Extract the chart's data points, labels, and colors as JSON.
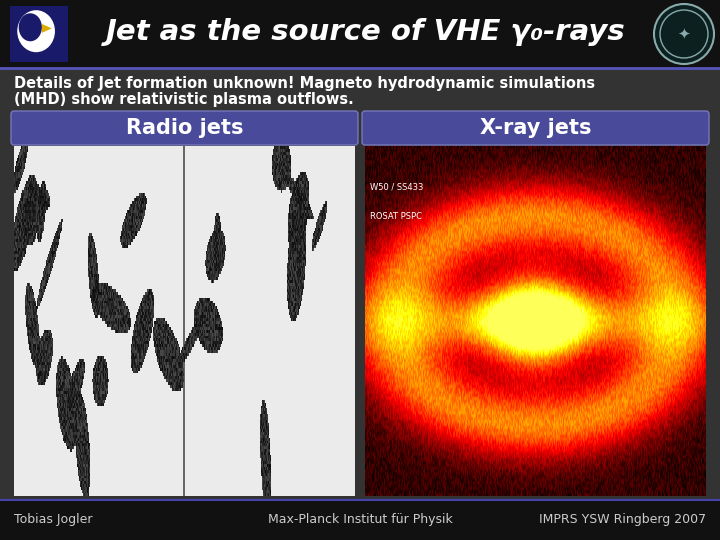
{
  "background_color": "#2a2a2a",
  "header_bg": "#111111",
  "header_text_color": "#ffffff",
  "body_bg": "#333333",
  "description_line1": "Details of Jet formation unknown! Magneto hydrodynamic simulations",
  "description_line2": "(MHD) show relativistic plasma outflows.",
  "description_color": "#ffffff",
  "box_left_label": "Radio jets",
  "box_right_label": "X-ray jets",
  "box_label_color": "#ffffff",
  "box_bg_color": "#4a4a9a",
  "box_border_color": "#7777bb",
  "footer_left": "Tobias Jogler",
  "footer_center": "Max-Planck Institut für Physik",
  "footer_right": "IMPRS YSW Ringberg 2007",
  "footer_color": "#cccccc",
  "footer_bg": "#111111",
  "footer_line_color": "#4444aa",
  "header_line_color": "#5555bb",
  "logo_left_bg": "#1a1a6a",
  "logo_right_border": "#88aaaa",
  "logo_right_bg": "#0d2020",
  "title_text": "Jet as the source of VHE γ",
  "title_suffix": "-rays",
  "title_sub": "0"
}
